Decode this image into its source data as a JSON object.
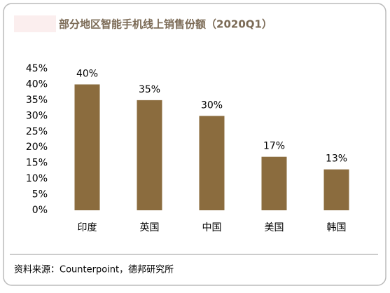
{
  "chart_data": {
    "type": "bar",
    "title": "部分地区智能手机线上销售份额（2020Q1）",
    "categories": [
      "印度",
      "英国",
      "中国",
      "美国",
      "韩国"
    ],
    "values": [
      40,
      35,
      30,
      17,
      13
    ],
    "value_labels": [
      "40%",
      "35%",
      "30%",
      "17%",
      "13%"
    ],
    "color": "#8b6c3e",
    "ylim": [
      0,
      45
    ],
    "yticks": [
      {
        "value": 0,
        "label": "0%"
      },
      {
        "value": 5,
        "label": "5%"
      },
      {
        "value": 10,
        "label": "10%"
      },
      {
        "value": 15,
        "label": "15%"
      },
      {
        "value": 20,
        "label": "20%"
      },
      {
        "value": 25,
        "label": "25%"
      },
      {
        "value": 30,
        "label": "30%"
      },
      {
        "value": 35,
        "label": "35%"
      },
      {
        "value": 40,
        "label": "40%"
      },
      {
        "value": 45,
        "label": "45%"
      }
    ],
    "source": "资料来源：Counterpoint，德邦研究所"
  }
}
